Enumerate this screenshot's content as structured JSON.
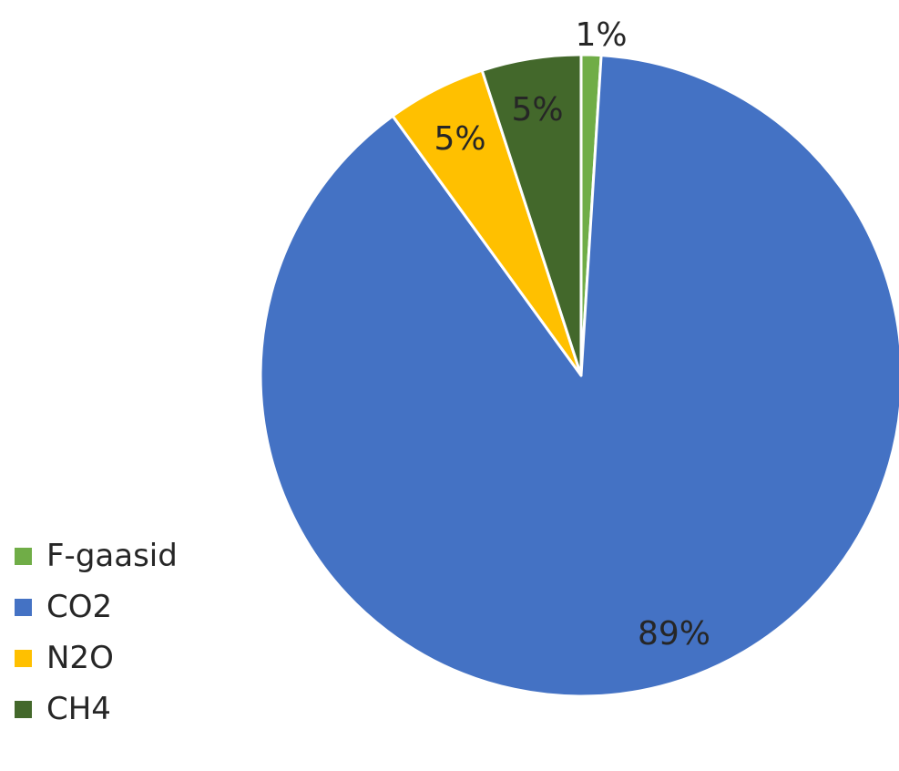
{
  "chart_data": {
    "type": "pie",
    "slices": [
      {
        "name": "F-gaasid",
        "value": 1,
        "label": "1%",
        "color": "#70AD47"
      },
      {
        "name": "CO2",
        "value": 89,
        "label": "89%",
        "color": "#4472C4"
      },
      {
        "name": "N2O",
        "value": 5,
        "label": "5%",
        "color": "#FFC000"
      },
      {
        "name": "CH4",
        "value": 5,
        "label": "5%",
        "color": "#43682B"
      }
    ],
    "legend": {
      "position": "bottom-left",
      "items": [
        {
          "label": "F-gaasid",
          "color": "#70AD47"
        },
        {
          "label": "CO2",
          "color": "#4472C4"
        },
        {
          "label": "N2O",
          "color": "#FFC000"
        },
        {
          "label": "CH4",
          "color": "#43682B"
        }
      ]
    },
    "start_angle_deg": 0,
    "direction": "clockwise",
    "slice_border_color": "#FFFFFF"
  }
}
